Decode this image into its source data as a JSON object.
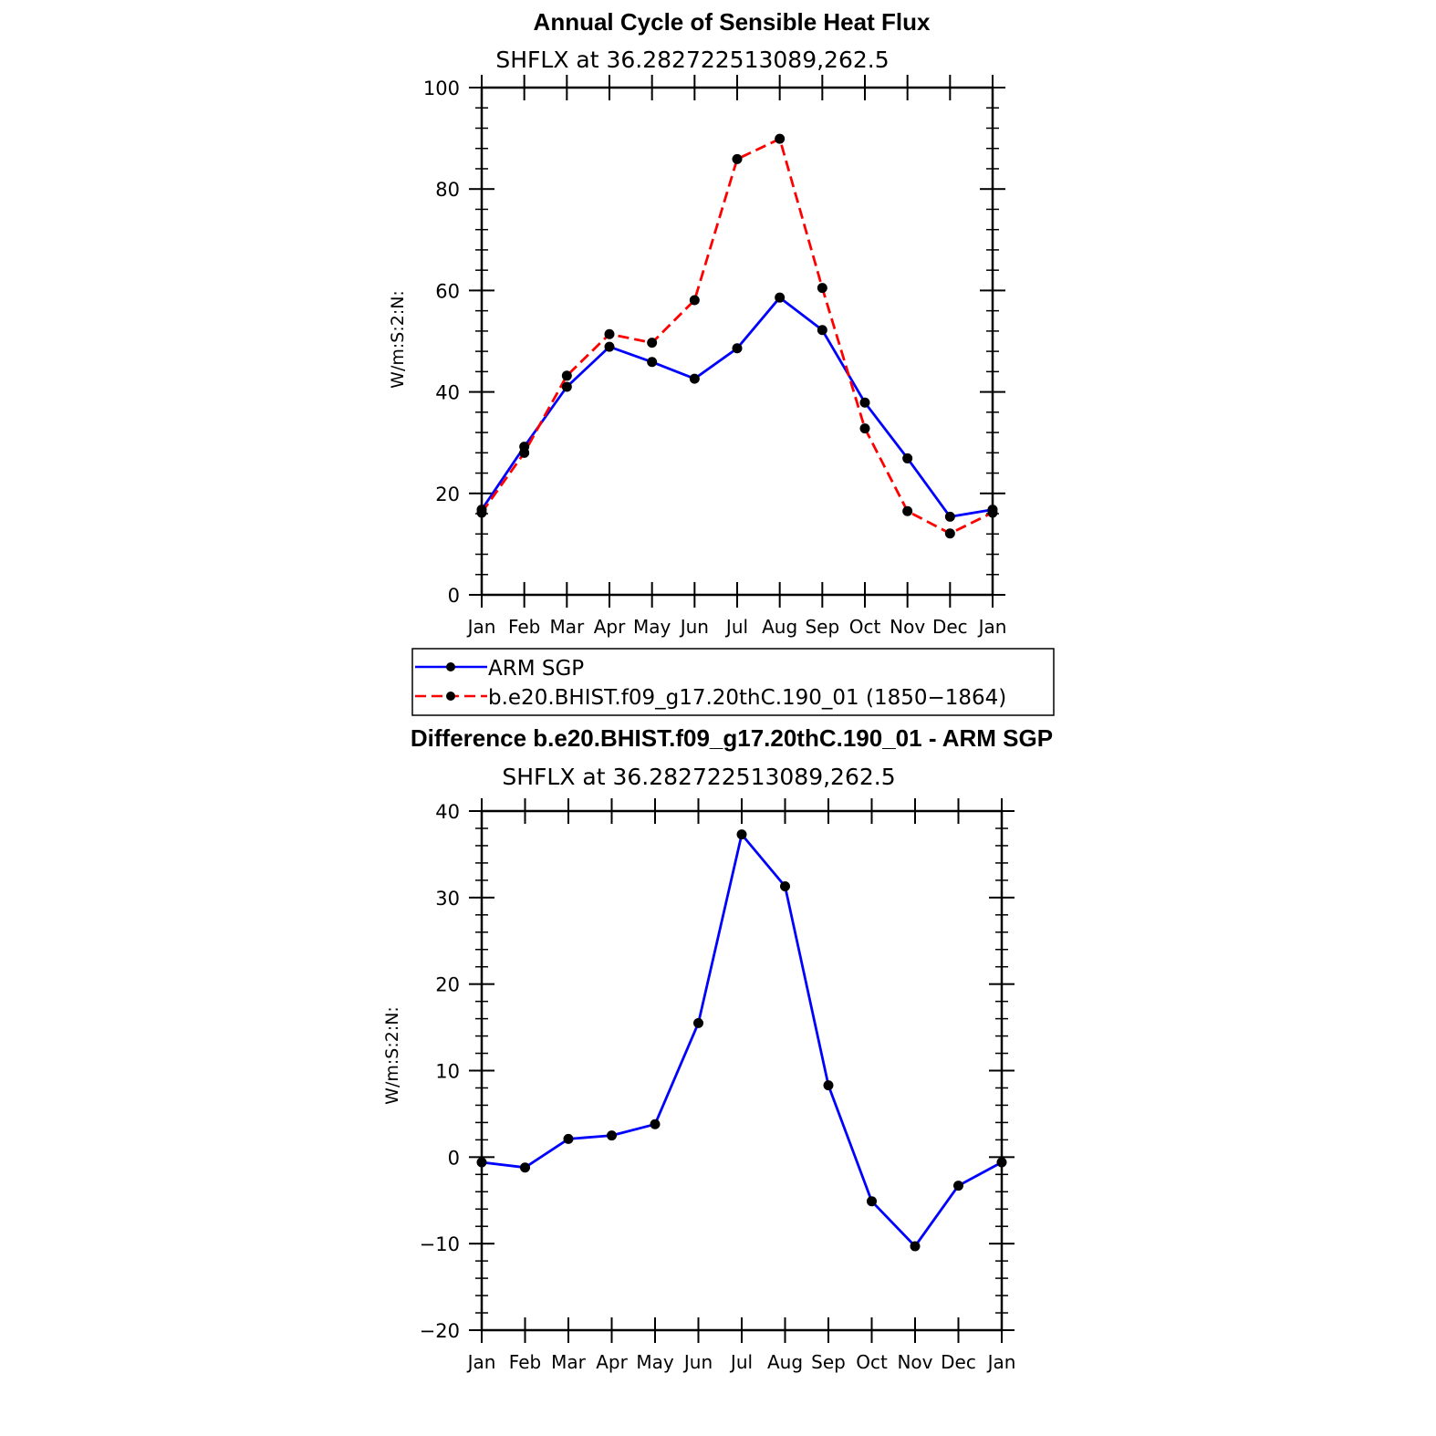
{
  "chart_data": [
    {
      "type": "line",
      "title": "Annual Cycle of Sensible Heat Flux",
      "subtitle": "SHFLX at 36.282722513089,262.5",
      "ylabel": "W/m:S:2:N:",
      "xlabel": "",
      "ylim": [
        0,
        100
      ],
      "yticks": [
        0,
        20,
        40,
        60,
        80,
        100
      ],
      "categories": [
        "Jan",
        "Feb",
        "Mar",
        "Apr",
        "May",
        "Jun",
        "Jul",
        "Aug",
        "Sep",
        "Oct",
        "Nov",
        "Dec",
        "Jan"
      ],
      "grid": false,
      "legend_position": "below",
      "series": [
        {
          "name": "ARM SGP",
          "color": "#0000ff",
          "dash": "solid",
          "values": [
            16.8,
            29.2,
            41.0,
            48.9,
            45.9,
            42.6,
            48.6,
            58.6,
            52.2,
            37.9,
            26.9,
            15.4,
            16.8
          ]
        },
        {
          "name": "b.e20.BHIST.f09_g17.20thC.190_01 (1850−1864)",
          "color": "#ff0000",
          "dash": "dashed",
          "values": [
            16.2,
            28.0,
            43.2,
            51.4,
            49.7,
            58.1,
            85.9,
            89.9,
            60.5,
            32.8,
            16.5,
            12.1,
            16.2
          ]
        }
      ]
    },
    {
      "type": "line",
      "title": "Difference b.e20.BHIST.f09_g17.20thC.190_01 - ARM SGP",
      "subtitle": "SHFLX at 36.282722513089,262.5",
      "ylabel": "W/m:S:2:N:",
      "xlabel": "",
      "ylim": [
        -20,
        40
      ],
      "yticks": [
        -20,
        -10,
        0,
        10,
        20,
        30,
        40
      ],
      "ytick_labels": [
        "−20",
        "−10",
        "0",
        "10",
        "20",
        "30",
        "40"
      ],
      "categories": [
        "Jan",
        "Feb",
        "Mar",
        "Apr",
        "May",
        "Jun",
        "Jul",
        "Aug",
        "Sep",
        "Oct",
        "Nov",
        "Dec",
        "Jan"
      ],
      "grid": false,
      "series": [
        {
          "color": "#0000ff",
          "dash": "solid",
          "values": [
            -0.6,
            -1.2,
            2.1,
            2.5,
            3.8,
            15.5,
            37.3,
            31.3,
            8.3,
            -5.1,
            -10.3,
            -3.3,
            -0.6
          ]
        }
      ]
    }
  ]
}
